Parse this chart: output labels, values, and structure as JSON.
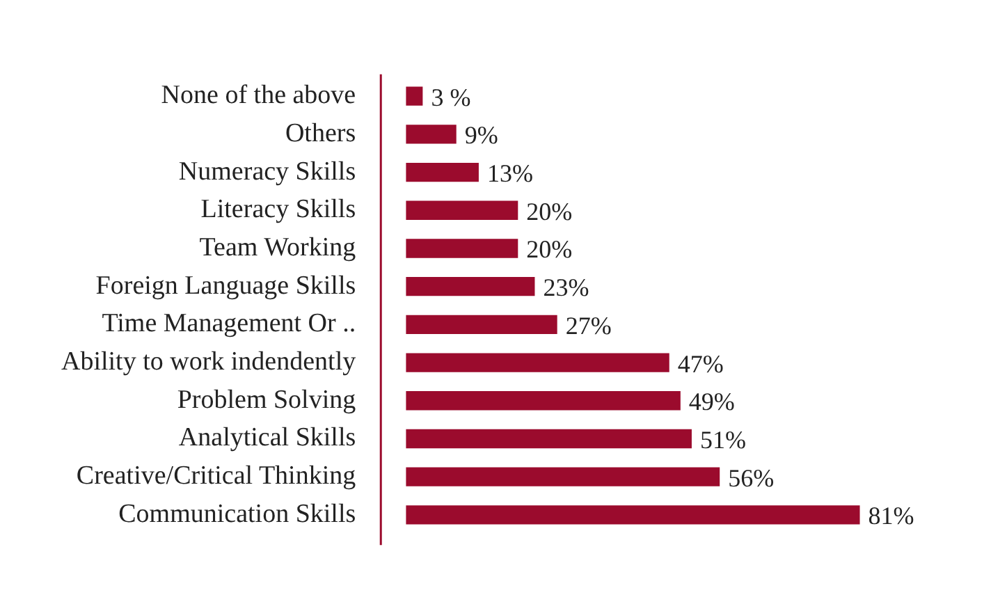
{
  "chart_data": {
    "type": "bar",
    "orientation": "horizontal",
    "categories": [
      "None of the above",
      "Others",
      "Numeracy Skills",
      "Literacy Skills",
      "Team Working",
      "Foreign Language Skills",
      "Time Management Or ..",
      "Ability to work indendently",
      "Problem Solving",
      "Analytical Skills",
      "Creative/Critical Thinking",
      "Communication Skills"
    ],
    "values": [
      3,
      9,
      13,
      20,
      20,
      23,
      27,
      47,
      49,
      51,
      56,
      81
    ],
    "value_labels": [
      "3 %",
      "9%",
      "13%",
      "20%",
      "20%",
      "23%",
      "27%",
      "47%",
      "49%",
      "51%",
      "56%",
      "81%"
    ],
    "color": "#9b0b2d",
    "grid": false,
    "legend": false
  }
}
